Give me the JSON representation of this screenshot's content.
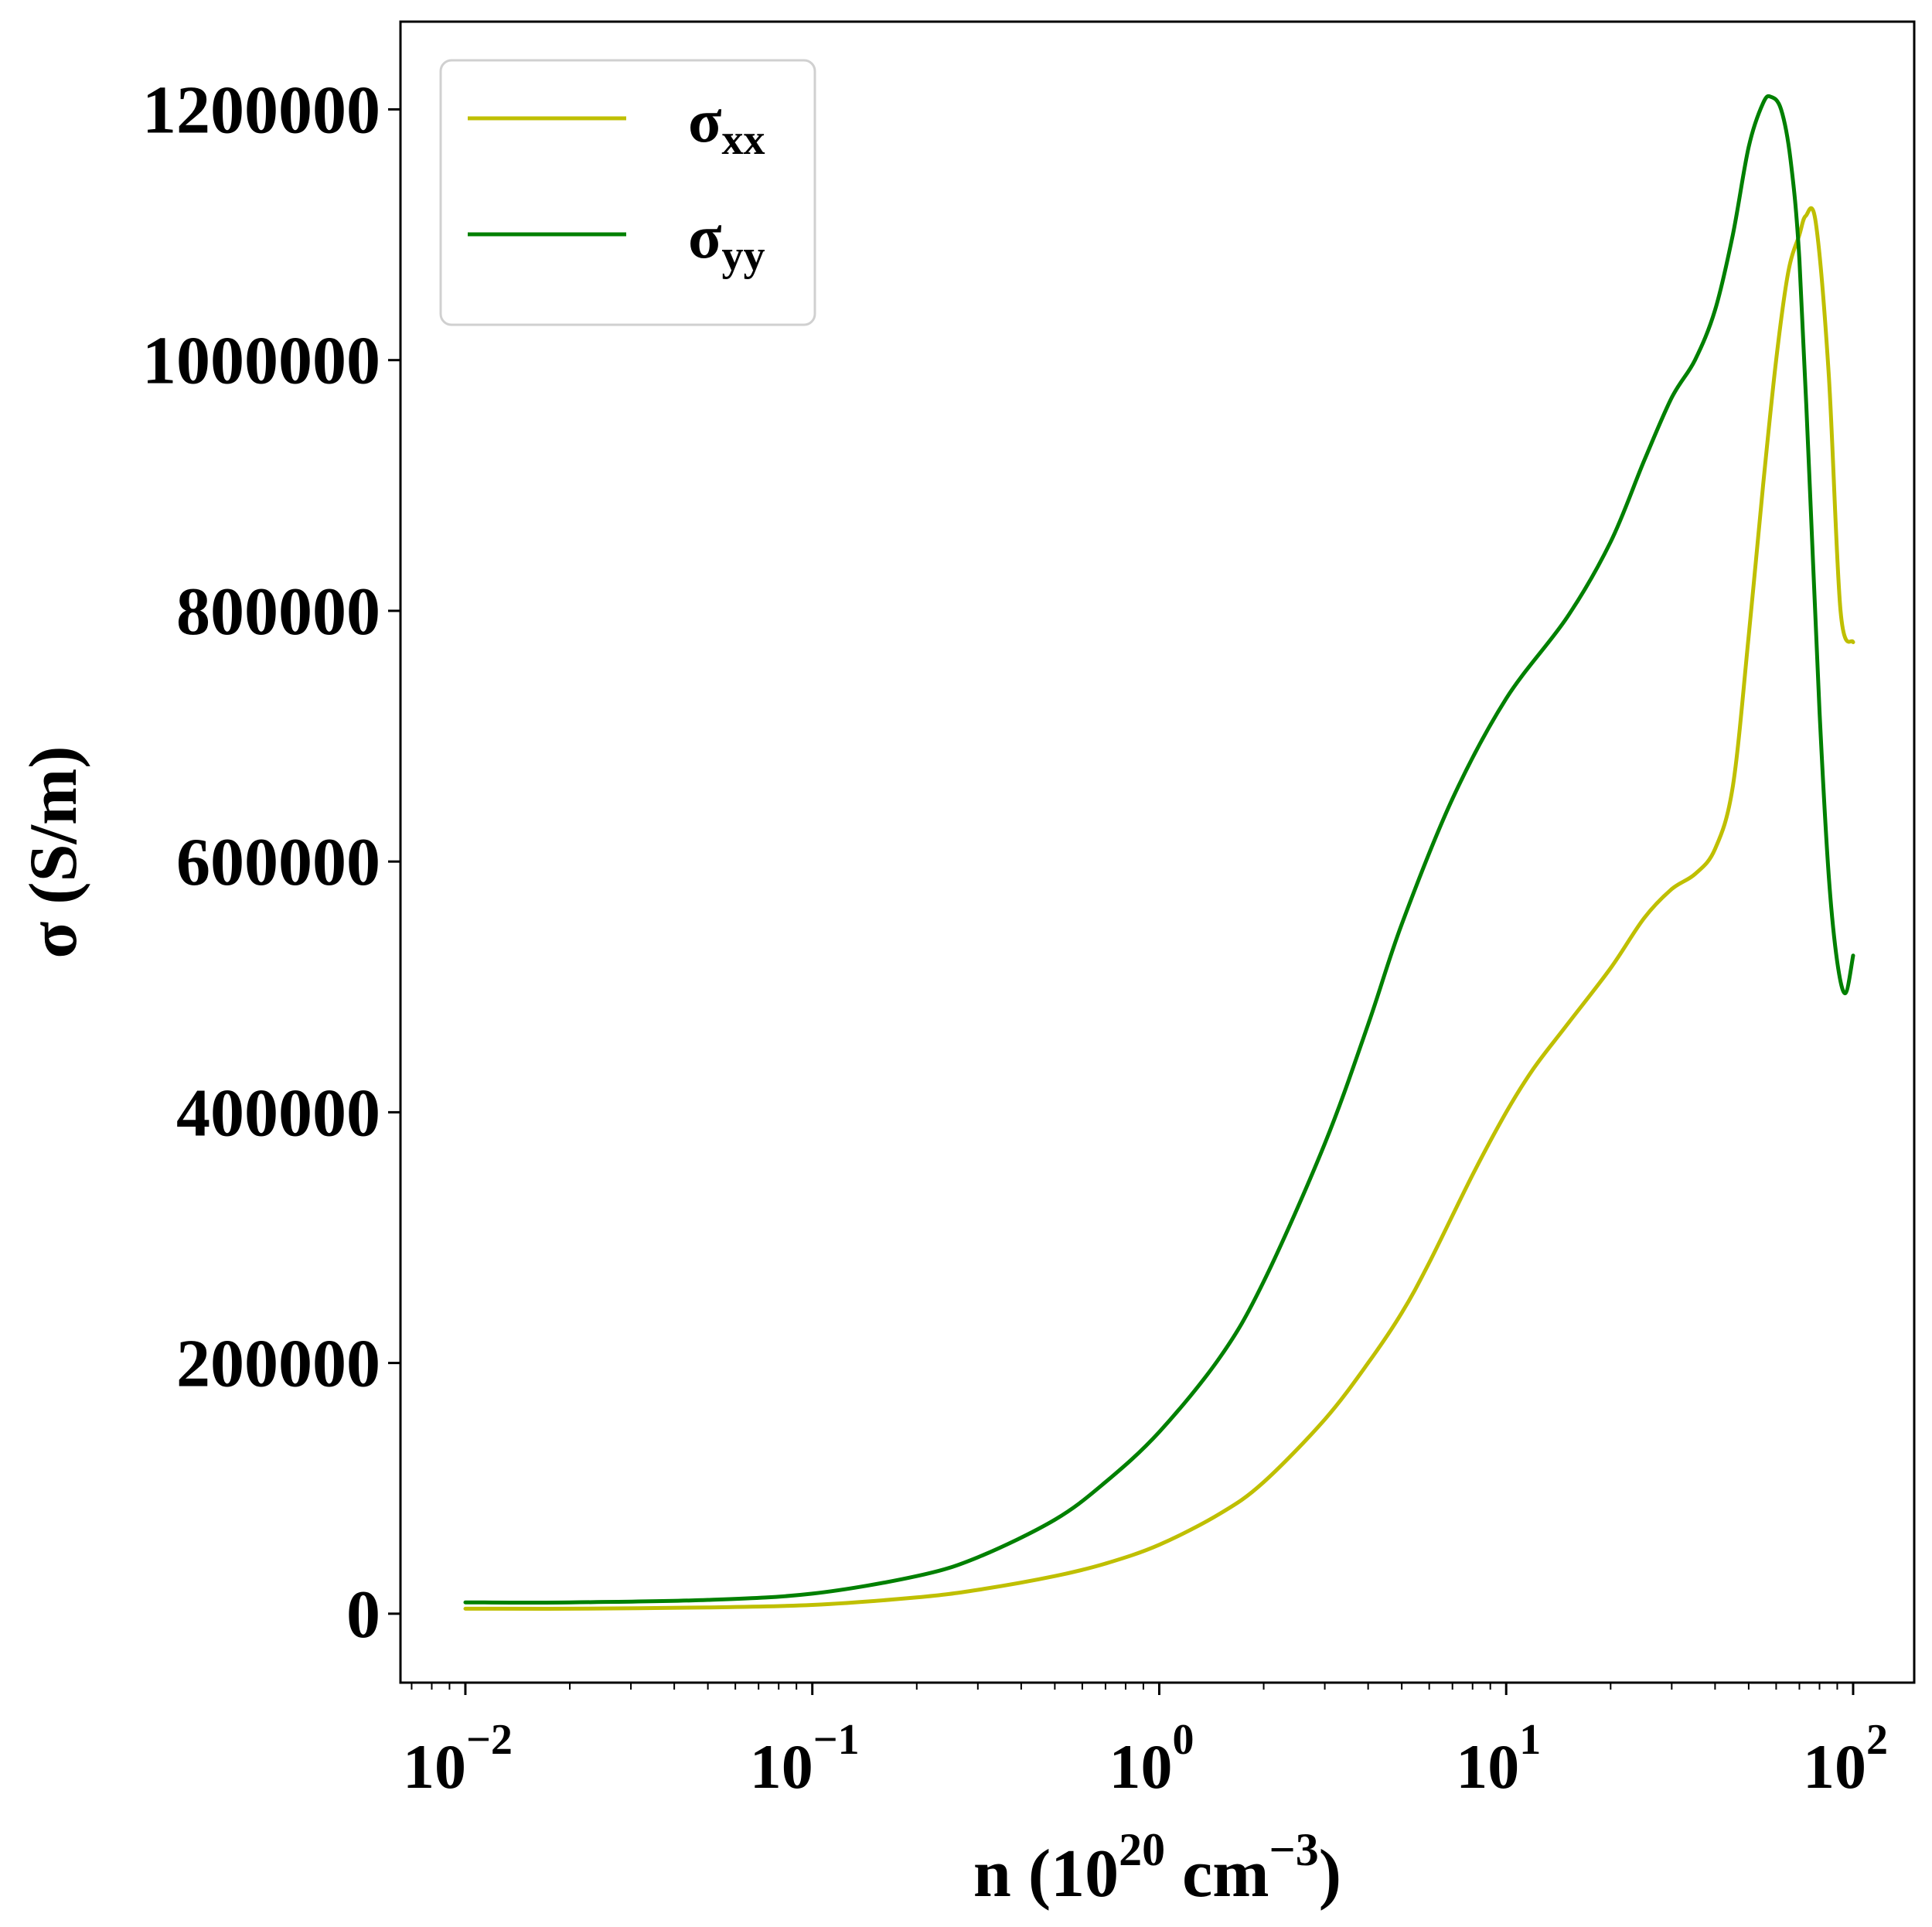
{
  "chart_data": {
    "type": "line",
    "xscale": "log",
    "xlabel": {
      "prefix": "n (10",
      "sup1": "20",
      "mid": " cm",
      "sup2": "−3",
      "suffix": ")"
    },
    "ylabel": "σ (S/m)",
    "xlim": [
      0.0065,
      150
    ],
    "ylim": [
      -55000,
      1270000
    ],
    "x_ticks": [
      {
        "base": "10",
        "exp": "−2",
        "value": 0.01
      },
      {
        "base": "10",
        "exp": "−1",
        "value": 0.1
      },
      {
        "base": "10",
        "exp": "0",
        "value": 1
      },
      {
        "base": "10",
        "exp": "1",
        "value": 10
      },
      {
        "base": "10",
        "exp": "2",
        "value": 100
      }
    ],
    "y_ticks": [
      {
        "label": "0",
        "value": 0
      },
      {
        "label": "200000",
        "value": 200000
      },
      {
        "label": "400000",
        "value": 400000
      },
      {
        "label": "600000",
        "value": 600000
      },
      {
        "label": "800000",
        "value": 800000
      },
      {
        "label": "1000000",
        "value": 1000000
      },
      {
        "label": "1200000",
        "value": 1200000
      }
    ],
    "legend_position": "top-left",
    "grid": false,
    "series": [
      {
        "name": "σxx",
        "symbol": "σ",
        "subscript": "xx",
        "color": "#bfbf00",
        "x": [
          0.01,
          0.02,
          0.05,
          0.1,
          0.2,
          0.3,
          0.5,
          0.7,
          1,
          1.5,
          2,
          3,
          4,
          5,
          6,
          8,
          10,
          12,
          15,
          20,
          25,
          30,
          35,
          40,
          45,
          50,
          55,
          60,
          65,
          70,
          73,
          78,
          85,
          92,
          100
        ],
        "y": [
          4000,
          4000,
          5000,
          7000,
          13000,
          19000,
          30000,
          40000,
          55000,
          80000,
          105000,
          155000,
          200000,
          240000,
          280000,
          350000,
          400000,
          435000,
          470000,
          515000,
          555000,
          578000,
          590000,
          610000,
          660000,
          780000,
          900000,
          1000000,
          1070000,
          1100000,
          1115000,
          1110000,
          990000,
          800000,
          775000
        ]
      },
      {
        "name": "σyy",
        "symbol": "σ",
        "subscript": "yy",
        "color": "#008000",
        "x": [
          0.01,
          0.02,
          0.05,
          0.1,
          0.2,
          0.3,
          0.5,
          0.7,
          1,
          1.5,
          2,
          3,
          4,
          5,
          7,
          10,
          15,
          20,
          25,
          30,
          35,
          40,
          45,
          50,
          55,
          58,
          62,
          66,
          70,
          75,
          80,
          85,
          90,
          95,
          100
        ],
        "y": [
          9000,
          9000,
          11000,
          16000,
          30000,
          45000,
          75000,
          105000,
          145000,
          205000,
          265000,
          375000,
          470000,
          550000,
          650000,
          730000,
          795000,
          855000,
          920000,
          970000,
          1000000,
          1040000,
          1100000,
          1170000,
          1205000,
          1210000,
          1200000,
          1160000,
          1080000,
          900000,
          720000,
          590000,
          520000,
          495000,
          525000
        ]
      }
    ]
  }
}
